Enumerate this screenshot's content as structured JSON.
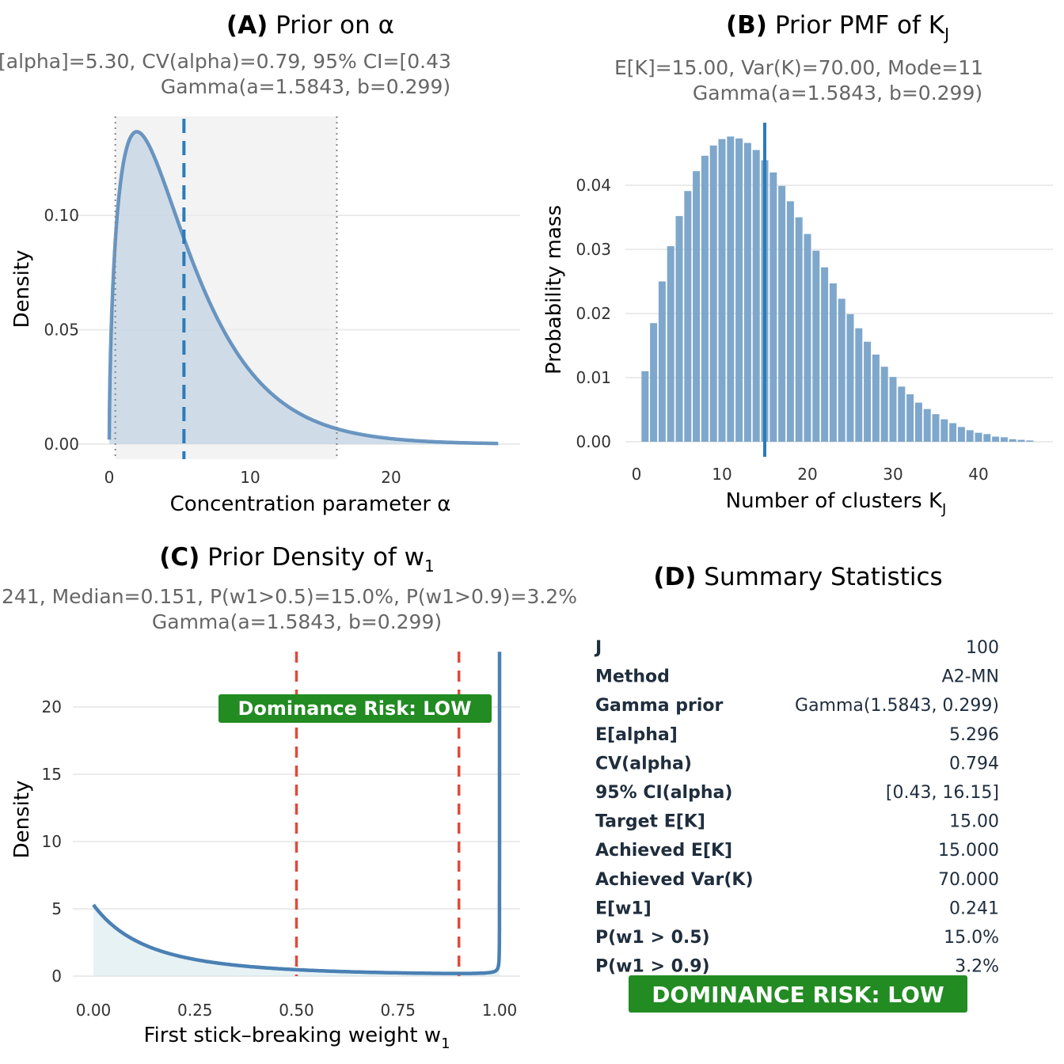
{
  "colors": {
    "bars": "#7ea7cb",
    "mean_line": "#2b7bba",
    "curve": "#4a80b4",
    "area": "#c8d6e4",
    "ci_band": "#f3f3f3",
    "risk": "#228b22",
    "threshold": "#e04a3a"
  },
  "chart_data": [
    {
      "type": "area",
      "panel": "A",
      "title_bold": "(A)",
      "title": "Prior on α",
      "subtitle_line1": "[alpha]=5.30,  CV(alpha)=0.79,  95% CI=[0.43",
      "subtitle_line2": "Gamma(a=1.5843, b=0.299)",
      "xlabel": "Concentration parameter α",
      "ylabel": "Density",
      "distribution": {
        "family": "Gamma",
        "shape": 1.5843,
        "rate": 0.299
      },
      "mean": 5.3,
      "ci": [
        0.43,
        16.15
      ],
      "xlim": [
        0,
        27.6
      ],
      "ylim": [
        0,
        0.14
      ],
      "xticks": [
        "0",
        "10",
        "20"
      ],
      "xtick_values": [
        0,
        10,
        20
      ],
      "yticks": [
        "0.00",
        "0.05",
        "0.10"
      ],
      "ytick_values": [
        0,
        0.05,
        0.1
      ],
      "grid": true
    },
    {
      "type": "bar",
      "panel": "B",
      "title_bold": "(B)",
      "title": "Prior PMF of K",
      "title_sub": "J",
      "subtitle_line1": "E[K]=15.00,  Var(K)=70.00,  Mode=11",
      "subtitle_line2": "Gamma(a=1.5843, b=0.299)",
      "xlabel": "Number of clusters K",
      "xlabel_sub": "J",
      "ylabel": "Probability mass",
      "x": [
        1,
        2,
        3,
        4,
        5,
        6,
        7,
        8,
        9,
        10,
        11,
        12,
        13,
        14,
        15,
        16,
        17,
        18,
        19,
        20,
        21,
        22,
        23,
        24,
        25,
        26,
        27,
        28,
        29,
        30,
        31,
        32,
        33,
        34,
        35,
        36,
        37,
        38,
        39,
        40,
        41,
        42,
        43,
        44,
        45,
        46
      ],
      "values": [
        0.011,
        0.0185,
        0.025,
        0.0305,
        0.0352,
        0.0391,
        0.0422,
        0.0446,
        0.0462,
        0.0472,
        0.0476,
        0.0473,
        0.0466,
        0.0455,
        0.0439,
        0.042,
        0.0399,
        0.0375,
        0.035,
        0.0324,
        0.0298,
        0.0272,
        0.0247,
        0.0223,
        0.0199,
        0.0177,
        0.0156,
        0.0136,
        0.0117,
        0.0101,
        0.0086,
        0.0074,
        0.0061,
        0.0051,
        0.0043,
        0.0035,
        0.0029,
        0.0023,
        0.0018,
        0.0014,
        0.0012,
        0.0008,
        0.0007,
        0.0004,
        0.0003,
        0.0002
      ],
      "mean_line": 15,
      "xlim": [
        -1,
        49
      ],
      "ylim": [
        0,
        0.05
      ],
      "xticks": [
        "0",
        "10",
        "20",
        "30",
        "40"
      ],
      "xtick_values": [
        0,
        10,
        20,
        30,
        40
      ],
      "yticks": [
        "0.00",
        "0.01",
        "0.02",
        "0.03",
        "0.04"
      ],
      "ytick_values": [
        0,
        0.01,
        0.02,
        0.03,
        0.04
      ],
      "grid": true
    },
    {
      "type": "line",
      "panel": "C",
      "title_bold": "(C)",
      "title": "Prior Density of w",
      "title_sub": "1",
      "subtitle_line1": "241,  Median=0.151,  P(w1>0.5)=15.0%,  P(w1>0.9)=3.2%",
      "subtitle_line2": "Gamma(a=1.5843, b=0.299)",
      "xlabel": "First stick–breaking weight w",
      "xlabel_sub": "1",
      "ylabel": "Density",
      "distribution": {
        "family": "Beta(1, α) mixed over Gamma(α)",
        "shape": 1.5843,
        "rate": 0.299
      },
      "thresholds": [
        0.5,
        0.9
      ],
      "annotation": "Dominance Risk: LOW",
      "xlim": [
        0,
        1
      ],
      "ylim": [
        0,
        24.1
      ],
      "xticks": [
        "0.00",
        "0.25",
        "0.50",
        "0.75",
        "1.00"
      ],
      "xtick_values": [
        0,
        0.25,
        0.5,
        0.75,
        1
      ],
      "yticks": [
        "0",
        "5",
        "10",
        "15",
        "20"
      ],
      "ytick_values": [
        0,
        5,
        10,
        15,
        20
      ],
      "grid": true
    },
    {
      "type": "table",
      "panel": "D",
      "title_bold": "(D)",
      "title": "Summary Statistics",
      "rows": [
        {
          "label": "J",
          "value": "100"
        },
        {
          "label": "Method",
          "value": "A2-MN"
        },
        {
          "label": "Gamma prior",
          "value": "Gamma(1.5843, 0.299)"
        },
        {
          "label": "E[alpha]",
          "value": "5.296"
        },
        {
          "label": "CV(alpha)",
          "value": "0.794"
        },
        {
          "label": "95% CI(alpha)",
          "value": "[0.43, 16.15]"
        },
        {
          "label": "Target E[K]",
          "value": "15.00"
        },
        {
          "label": "Achieved E[K]",
          "value": "15.000"
        },
        {
          "label": "Achieved Var(K)",
          "value": "70.000"
        },
        {
          "label": "E[w1]",
          "value": "0.241"
        },
        {
          "label": "P(w1 > 0.5)",
          "value": "15.0%"
        },
        {
          "label": "P(w1 > 0.9)",
          "value": "3.2%"
        }
      ],
      "banner": "DOMINANCE RISK: LOW"
    }
  ]
}
